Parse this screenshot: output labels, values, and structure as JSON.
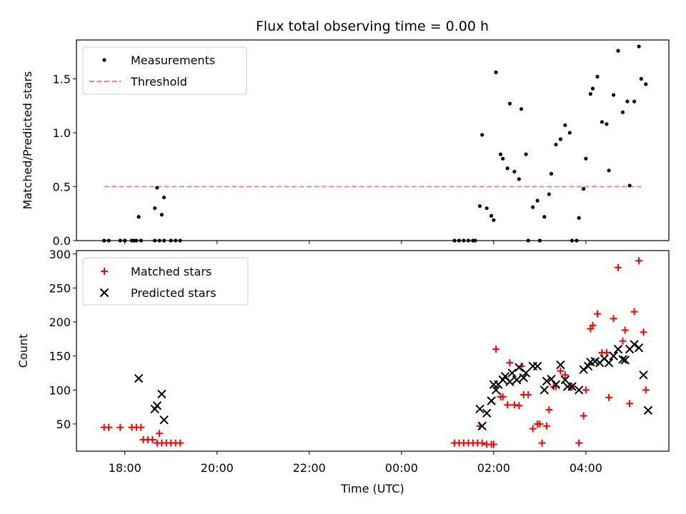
{
  "chart_data": {
    "title": "Flux total observing time = 0.00 h",
    "xlabel": "Time (UTC)",
    "x_unit": "hours since 00:00 UTC",
    "xlim": [
      -7.05,
      5.8
    ],
    "xticks": [
      {
        "value": -6,
        "label": "18:00"
      },
      {
        "value": -4,
        "label": "20:00"
      },
      {
        "value": -2,
        "label": "22:00"
      },
      {
        "value": 0,
        "label": "00:00"
      },
      {
        "value": 2,
        "label": "02:00"
      },
      {
        "value": 4,
        "label": "04:00"
      }
    ],
    "panels": [
      {
        "type": "scatter",
        "ylabel": "Matched/Predicted stars",
        "ylim": [
          0,
          1.86
        ],
        "yticks": [
          {
            "value": 0,
            "label": "0.0"
          },
          {
            "value": 0.5,
            "label": "0.5"
          },
          {
            "value": 1.0,
            "label": "1.0"
          },
          {
            "value": 1.5,
            "label": "1.5"
          }
        ],
        "legend": {
          "placement": "top-left",
          "entries": [
            {
              "label": "Measurements",
              "marker": "dot",
              "color": "#000000"
            },
            {
              "label": "Threshold",
              "marker": "dashed-line",
              "color": "#ff7f7f"
            }
          ]
        },
        "threshold": {
          "value": 0.5,
          "x_range": [
            -6.45,
            5.2
          ],
          "color": "#ff7f7f"
        },
        "series": [
          {
            "name": "Measurements",
            "color": "#000000",
            "points": [
              [
                -6.45,
                0
              ],
              [
                -6.35,
                0
              ],
              [
                -6.1,
                0
              ],
              [
                -5.85,
                0
              ],
              [
                -5.75,
                0
              ],
              [
                -5.65,
                0
              ],
              [
                -5.35,
                0
              ],
              [
                -5.25,
                0
              ],
              [
                -5.15,
                0
              ],
              [
                -6.45,
                0
              ],
              [
                -6.0,
                0
              ],
              [
                -5.8,
                0
              ],
              [
                -5.7,
                0.22
              ],
              [
                -5.35,
                0.3
              ],
              [
                -5.3,
                0.49
              ],
              [
                -5.2,
                0.24
              ],
              [
                -5.15,
                0.4
              ],
              [
                -5.0,
                0
              ],
              [
                -4.9,
                0
              ],
              [
                -4.8,
                0
              ],
              [
                1.15,
                0
              ],
              [
                1.25,
                0
              ],
              [
                1.35,
                0
              ],
              [
                1.45,
                0
              ],
              [
                1.55,
                0
              ],
              [
                1.6,
                0
              ],
              [
                1.7,
                0.32
              ],
              [
                1.75,
                0.98
              ],
              [
                1.85,
                0.3
              ],
              [
                1.95,
                0.23
              ],
              [
                2.0,
                0.19
              ],
              [
                2.05,
                1.56
              ],
              [
                2.15,
                0.8
              ],
              [
                2.2,
                0.76
              ],
              [
                2.3,
                0.67
              ],
              [
                2.35,
                1.27
              ],
              [
                2.45,
                0.64
              ],
              [
                2.55,
                0.57
              ],
              [
                2.6,
                1.22
              ],
              [
                2.7,
                0.8
              ],
              [
                2.75,
                0
              ],
              [
                2.85,
                0.31
              ],
              [
                2.95,
                0.37
              ],
              [
                3.0,
                0
              ],
              [
                3.1,
                0.22
              ],
              [
                3.2,
                0.43
              ],
              [
                3.25,
                0.62
              ],
              [
                3.35,
                0.89
              ],
              [
                3.45,
                0.94
              ],
              [
                3.55,
                1.07
              ],
              [
                3.65,
                1.0
              ],
              [
                3.7,
                0
              ],
              [
                3.8,
                0
              ],
              [
                3.85,
                0.21
              ],
              [
                3.95,
                0.48
              ],
              [
                4.0,
                0.76
              ],
              [
                4.1,
                1.36
              ],
              [
                4.15,
                1.41
              ],
              [
                4.25,
                1.52
              ],
              [
                4.35,
                1.1
              ],
              [
                4.45,
                1.08
              ],
              [
                4.5,
                0.65
              ],
              [
                4.6,
                1.35
              ],
              [
                4.7,
                1.76
              ],
              [
                4.8,
                1.19
              ],
              [
                4.9,
                1.29
              ],
              [
                4.95,
                0.51
              ],
              [
                5.05,
                1.29
              ],
              [
                5.15,
                1.8
              ],
              [
                5.2,
                1.5
              ],
              [
                5.3,
                1.45
              ]
            ]
          }
        ]
      },
      {
        "type": "scatter",
        "ylabel": "Count",
        "ylim": [
          10,
          305
        ],
        "yticks": [
          {
            "value": 50,
            "label": "50"
          },
          {
            "value": 100,
            "label": "100"
          },
          {
            "value": 150,
            "label": "150"
          },
          {
            "value": 200,
            "label": "200"
          },
          {
            "value": 250,
            "label": "250"
          },
          {
            "value": 300,
            "label": "300"
          }
        ],
        "legend": {
          "placement": "top-left",
          "entries": [
            {
              "label": "Matched stars",
              "marker": "plus",
              "color": "#ff0000"
            },
            {
              "label": "Predicted stars",
              "marker": "cross",
              "color": "#000000"
            }
          ]
        },
        "series": [
          {
            "name": "Matched stars",
            "marker": "plus",
            "color": "#ff0000",
            "points": [
              [
                -6.45,
                45
              ],
              [
                -6.35,
                45
              ],
              [
                -6.1,
                45
              ],
              [
                -5.85,
                45
              ],
              [
                -5.75,
                45
              ],
              [
                -5.65,
                45
              ],
              [
                -5.6,
                27
              ],
              [
                -5.5,
                27
              ],
              [
                -5.4,
                27
              ],
              [
                -5.3,
                22
              ],
              [
                -5.25,
                36
              ],
              [
                -5.2,
                22
              ],
              [
                -5.1,
                22
              ],
              [
                -5.0,
                22
              ],
              [
                -4.9,
                22
              ],
              [
                -4.8,
                22
              ],
              [
                1.15,
                22
              ],
              [
                1.25,
                22
              ],
              [
                1.35,
                22
              ],
              [
                1.45,
                22
              ],
              [
                1.55,
                22
              ],
              [
                1.65,
                22
              ],
              [
                1.75,
                22
              ],
              [
                1.85,
                20
              ],
              [
                1.95,
                20
              ],
              [
                2.0,
                20
              ],
              [
                1.7,
                47
              ],
              [
                2.05,
                160
              ],
              [
                2.15,
                90
              ],
              [
                2.2,
                90
              ],
              [
                2.3,
                78
              ],
              [
                2.35,
                140
              ],
              [
                2.45,
                78
              ],
              [
                2.55,
                77
              ],
              [
                2.6,
                135
              ],
              [
                2.65,
                93
              ],
              [
                2.75,
                93
              ],
              [
                2.85,
                43
              ],
              [
                2.95,
                50
              ],
              [
                3.0,
                50
              ],
              [
                3.05,
                22
              ],
              [
                3.15,
                47
              ],
              [
                3.2,
                71
              ],
              [
                3.3,
                105
              ],
              [
                3.35,
                105
              ],
              [
                3.45,
                128
              ],
              [
                3.55,
                122
              ],
              [
                3.65,
                105
              ],
              [
                3.7,
                105
              ],
              [
                3.85,
                22
              ],
              [
                3.95,
                62
              ],
              [
                4.0,
                100
              ],
              [
                4.1,
                190
              ],
              [
                4.15,
                195
              ],
              [
                4.25,
                212
              ],
              [
                4.35,
                155
              ],
              [
                4.45,
                155
              ],
              [
                4.5,
                89
              ],
              [
                4.6,
                205
              ],
              [
                4.7,
                280
              ],
              [
                4.8,
                172
              ],
              [
                4.85,
                188
              ],
              [
                4.95,
                80
              ],
              [
                5.05,
                215
              ],
              [
                5.15,
                290
              ],
              [
                5.25,
                185
              ],
              [
                5.3,
                100
              ]
            ]
          },
          {
            "name": "Predicted stars",
            "marker": "cross",
            "color": "#000000",
            "points": [
              [
                -5.7,
                117
              ],
              [
                -5.35,
                72
              ],
              [
                -5.3,
                77
              ],
              [
                -5.2,
                94
              ],
              [
                -5.15,
                56
              ],
              [
                1.7,
                72
              ],
              [
                1.75,
                47
              ],
              [
                1.85,
                66
              ],
              [
                1.95,
                84
              ],
              [
                2.0,
                108
              ],
              [
                2.05,
                100
              ],
              [
                2.1,
                108
              ],
              [
                2.2,
                115
              ],
              [
                2.25,
                120
              ],
              [
                2.35,
                112
              ],
              [
                2.4,
                125
              ],
              [
                2.5,
                115
              ],
              [
                2.55,
                133
              ],
              [
                2.65,
                118
              ],
              [
                2.7,
                125
              ],
              [
                2.85,
                135
              ],
              [
                2.95,
                135
              ],
              [
                3.1,
                100
              ],
              [
                3.15,
                113
              ],
              [
                3.25,
                116
              ],
              [
                3.35,
                108
              ],
              [
                3.45,
                137
              ],
              [
                3.55,
                115
              ],
              [
                3.6,
                105
              ],
              [
                3.7,
                105
              ],
              [
                3.85,
                100
              ],
              [
                3.95,
                130
              ],
              [
                4.05,
                135
              ],
              [
                4.1,
                141
              ],
              [
                4.2,
                142
              ],
              [
                4.3,
                140
              ],
              [
                4.4,
                146
              ],
              [
                4.5,
                140
              ],
              [
                4.6,
                150
              ],
              [
                4.7,
                160
              ],
              [
                4.8,
                145
              ],
              [
                4.85,
                144
              ],
              [
                4.95,
                160
              ],
              [
                5.05,
                167
              ],
              [
                5.15,
                162
              ],
              [
                5.25,
                122
              ],
              [
                5.35,
                70
              ]
            ]
          }
        ]
      }
    ]
  }
}
